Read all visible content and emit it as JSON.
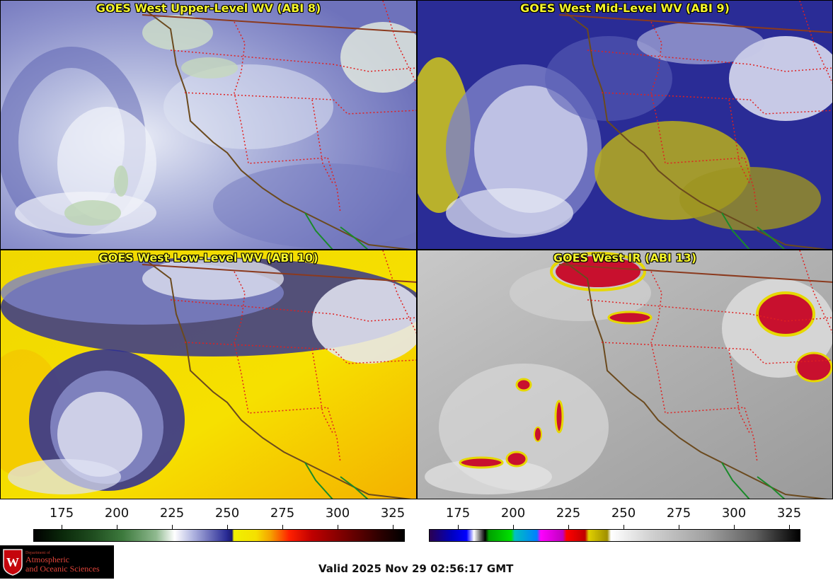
{
  "panels": [
    {
      "title": "GOES West Upper-Level WV (ABI 8)"
    },
    {
      "title": "GOES West Mid-Level WV (ABI 9)"
    },
    {
      "title": "GOES West Low-Level WV (ABI 10)"
    },
    {
      "title": "GOES West IR (ABI 13)"
    }
  ],
  "colorbars": {
    "wv": {
      "ticks": [
        "175",
        "200",
        "225",
        "250",
        "275",
        "300",
        "325"
      ]
    },
    "ir": {
      "ticks": [
        "175",
        "200",
        "225",
        "250",
        "275",
        "300",
        "325"
      ]
    }
  },
  "logo": {
    "dept": "Department of",
    "line1": "Atmospheric",
    "line2": "and Oceanic Sciences",
    "crest_letter": "W",
    "brand_color": "#c5050c"
  },
  "valid_time": "Valid 2025 Nov 29 02:56:17 GMT"
}
